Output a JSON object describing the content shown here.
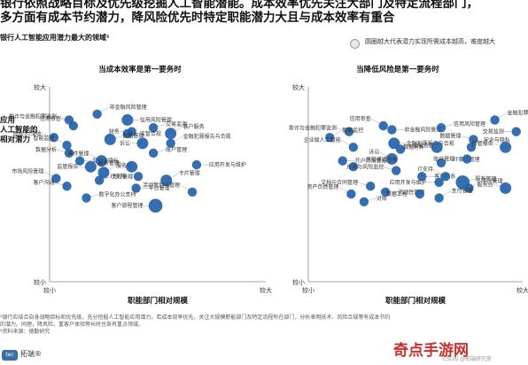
{
  "header": {
    "title_line1": "银行依照战略目标及优先级挖掘人工智能潜能。成本效率优先关注大部门及特定流程部门，",
    "title_line2": "多方面有成本节约潜力，降风险优先时特定职能潜力大且与成本效率有重合"
  },
  "subtitle": "银行人工智能应用潜力最大的领域²",
  "legend": {
    "text": "圆圈越大代表潜力实现所需成本越高，难度越大"
  },
  "footnote": {
    "line1": "¹银行应结合自身战略目标和优先级，充分挖掘人工智能应用潜力。若成本效率优先，关注大规模职能部门及特定流程所在部门，分析表明技术、风险合规等有成本节约",
    "line2": "的潜力。同理，降风险，重客户体验等长时也各有重点领域。",
    "line3": "²资料来源：德勤研究"
  },
  "brand": {
    "mark": "tec",
    "name": "拓端®"
  },
  "watermark": {
    "text": "奇点手游网",
    "small": "CSDN @拓端研究室"
  },
  "chart_data": [
    {
      "type": "scatter",
      "title": "当成本效率是第一要务时",
      "xlabel": "职能部门相对规模",
      "ylabel": "应用人工智能的相对潜力",
      "x_ticks": [
        "较小",
        "较大"
      ],
      "y_ticks": [
        "较小",
        "较大"
      ],
      "xlim": [
        0,
        10
      ],
      "ylim": [
        0,
        10
      ],
      "color": "#1f5fa8",
      "points": [
        {
          "label": "非金融风险管理",
          "x": 2.2,
          "y": 8.6,
          "size": 2
        },
        {
          "label": "欺诈与金融犯罪监测",
          "x": 0.9,
          "y": 8.3,
          "size": 2
        },
        {
          "label": "信用风险管理",
          "x": 3.6,
          "y": 8.3,
          "size": 3
        },
        {
          "label": "信用审查",
          "x": 1.1,
          "y": 8.0,
          "size": 2
        },
        {
          "label": "交易监测",
          "x": 4.8,
          "y": 7.9,
          "size": 2
        },
        {
          "label": "财务",
          "x": 3.8,
          "y": 7.7,
          "size": 2
        },
        {
          "label": "客户服务",
          "x": 5.6,
          "y": 7.6,
          "size": 3
        },
        {
          "label": "债权人/清收",
          "x": 0.2,
          "y": 7.4,
          "size": 2
        },
        {
          "label": "监管合规",
          "x": 3.6,
          "y": 7.6,
          "size": 2
        },
        {
          "label": "智能监控",
          "x": 0.8,
          "y": 7.0,
          "size": 2
        },
        {
          "label": "数据管理",
          "x": 2.8,
          "y": 7.3,
          "size": 3
        },
        {
          "label": "诉讼",
          "x": 4.3,
          "y": 7.1,
          "size": 3
        },
        {
          "label": "金融犯罪报告与合规",
          "x": 5.6,
          "y": 7.1,
          "size": 2
        },
        {
          "label": "数据分析",
          "x": 0.9,
          "y": 6.6,
          "size": 2
        },
        {
          "label": "安全与隐私",
          "x": 1.4,
          "y": 6.2,
          "size": 2
        },
        {
          "label": "事件管理",
          "x": 2.4,
          "y": 6.2,
          "size": 3
        },
        {
          "label": "账户管理",
          "x": 4.8,
          "y": 6.6,
          "size": 2
        },
        {
          "label": "监管报告",
          "x": 1.9,
          "y": 5.9,
          "size": 3
        },
        {
          "label": "服务台",
          "x": 2.5,
          "y": 5.6,
          "size": 3
        },
        {
          "label": "服务管理",
          "x": 3.8,
          "y": 5.9,
          "size": 3
        },
        {
          "label": "应用开发与维护",
          "x": 6.8,
          "y": 6.0,
          "size": 2
        },
        {
          "label": "市场风险管理",
          "x": 0.3,
          "y": 5.3,
          "size": 2
        },
        {
          "label": "支付管理",
          "x": 2.3,
          "y": 5.2,
          "size": 2
        },
        {
          "label": "IT支持",
          "x": 4.1,
          "y": 5.4,
          "size": 2
        },
        {
          "label": "卡片管理",
          "x": 5.4,
          "y": 5.2,
          "size": 3
        },
        {
          "label": "客户沟通",
          "x": 0.8,
          "y": 4.9,
          "size": 2
        },
        {
          "label": "平台管理",
          "x": 4.0,
          "y": 4.8,
          "size": 2
        },
        {
          "label": "活动策划与管理",
          "x": 6.6,
          "y": 4.6,
          "size": 2
        },
        {
          "label": "数字化办公支持",
          "x": 1.7,
          "y": 4.3,
          "size": 2
        },
        {
          "label": "客户旅程管理",
          "x": 4.9,
          "y": 3.9,
          "size": 4
        }
      ]
    },
    {
      "type": "scatter",
      "title": "当降低风险是第一要务时",
      "xlabel": "职能部门相对规模",
      "ylabel": "应用人工智能的相对潜力",
      "x_ticks": [
        "较小",
        "较大"
      ],
      "y_ticks": [
        "较小",
        "较大"
      ],
      "xlim": [
        0,
        10
      ],
      "ylim": [
        0,
        10
      ],
      "color": "#1f5fa8",
      "points": [
        {
          "label": "金融犯罪反洗钱报告专员",
          "x": 8.7,
          "y": 8.3,
          "size": 2
        },
        {
          "label": "欺诈与金融犯罪监测",
          "x": 1.9,
          "y": 7.7,
          "size": 2
        },
        {
          "label": "非金融风险管理",
          "x": 3.9,
          "y": 7.8,
          "size": 2
        },
        {
          "label": "信用审查",
          "x": 3.5,
          "y": 8.0,
          "size": 2
        },
        {
          "label": "信用风险管理",
          "x": 6.2,
          "y": 7.9,
          "size": 2
        },
        {
          "label": "交易监测",
          "x": 9.7,
          "y": 7.7,
          "size": 2
        },
        {
          "label": "智能监控",
          "x": 1.0,
          "y": 7.4,
          "size": 2
        },
        {
          "label": "数据管理",
          "x": 7.7,
          "y": 7.3,
          "size": 2
        },
        {
          "label": "金融犯罪报告与合规",
          "x": 4.0,
          "y": 7.1,
          "size": 3
        },
        {
          "label": "企业级人工智能",
          "x": 2.1,
          "y": 6.9,
          "size": 2
        },
        {
          "label": "监管合规",
          "x": 4.3,
          "y": 6.8,
          "size": 2
        },
        {
          "label": "数据分析",
          "x": 6.0,
          "y": 6.9,
          "size": 3
        },
        {
          "label": "安全与隐私",
          "x": 7.6,
          "y": 6.9,
          "size": 2
        },
        {
          "label": "监管报告",
          "x": 9.2,
          "y": 6.9,
          "size": 3
        },
        {
          "label": "开户异常处理",
          "x": 1.6,
          "y": 6.2,
          "size": 2
        },
        {
          "label": "诉讼",
          "x": 3.9,
          "y": 6.3,
          "size": 3
        },
        {
          "label": "IT事件管理",
          "x": 6.2,
          "y": 6.1,
          "size": 2
        },
        {
          "label": "账户管理",
          "x": 7.4,
          "y": 6.3,
          "size": 2
        },
        {
          "label": "风险模式分析",
          "x": 2.1,
          "y": 5.9,
          "size": 2
        },
        {
          "label": "应用与风险监控",
          "x": 4.1,
          "y": 5.7,
          "size": 2
        },
        {
          "label": "客户关系",
          "x": 5.3,
          "y": 5.4,
          "size": 2
        },
        {
          "label": "IT支持",
          "x": 6.4,
          "y": 5.4,
          "size": 2
        },
        {
          "label": "服务管理",
          "x": 7.2,
          "y": 5.1,
          "size": 4
        },
        {
          "label": "应用开发与维护",
          "x": 6.1,
          "y": 5.1,
          "size": 2
        },
        {
          "label": "平台管理",
          "x": 7.5,
          "y": 4.8,
          "size": 2
        },
        {
          "label": "文档与合同管理",
          "x": 2.9,
          "y": 4.9,
          "size": 2
        },
        {
          "label": "流动性管理",
          "x": 3.6,
          "y": 4.6,
          "size": 2
        },
        {
          "label": "资产负债管理",
          "x": 2.0,
          "y": 4.5,
          "size": 2
        },
        {
          "label": "对账",
          "x": 2.6,
          "y": 4.1,
          "size": 2
        },
        {
          "label": "数据工程",
          "x": 5.2,
          "y": 4.5,
          "size": 2
        },
        {
          "label": "支付管理",
          "x": 6.1,
          "y": 4.3,
          "size": 2
        },
        {
          "label": "服务台",
          "x": 9.2,
          "y": 4.8,
          "size": 3
        }
      ]
    }
  ]
}
